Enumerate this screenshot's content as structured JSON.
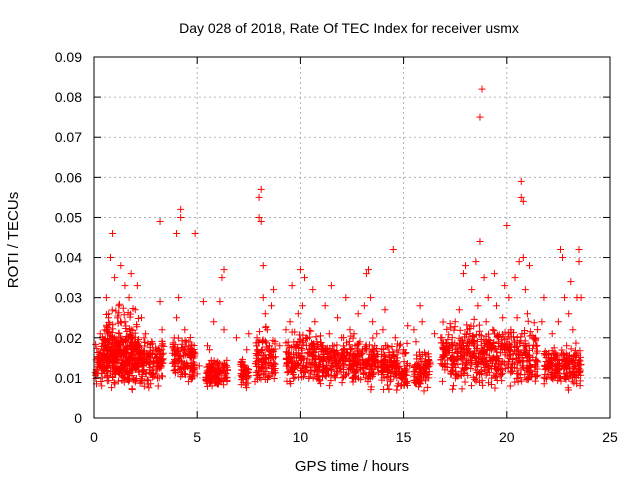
{
  "chart_data": {
    "type": "scatter",
    "title": "Day 028 of 2018, Rate Of TEC Index for receiver usmx",
    "xlabel": "GPS time / hours",
    "ylabel": "ROTI / TECUs",
    "xlim": [
      0,
      25
    ],
    "ylim": [
      0,
      0.09
    ],
    "x_ticks": [
      "0",
      "5",
      "10",
      "15",
      "20",
      "25"
    ],
    "y_ticks": [
      "0",
      "0.01",
      "0.02",
      "0.03",
      "0.04",
      "0.05",
      "0.06",
      "0.07",
      "0.08",
      "0.09"
    ],
    "grid": true,
    "marker": "+",
    "color": "#ff0000",
    "series": [
      {
        "points": [
          [
            0.1,
            0.012
          ],
          [
            0.2,
            0.015
          ],
          [
            0.3,
            0.021
          ],
          [
            0.4,
            0.01
          ],
          [
            0.5,
            0.018
          ],
          [
            0.6,
            0.03
          ],
          [
            0.6,
            0.013
          ],
          [
            0.7,
            0.025
          ],
          [
            0.8,
            0.017
          ],
          [
            0.8,
            0.04
          ],
          [
            0.9,
            0.011
          ],
          [
            0.9,
            0.046
          ],
          [
            1.0,
            0.02
          ],
          [
            1.0,
            0.035
          ],
          [
            1.1,
            0.014
          ],
          [
            1.2,
            0.028
          ],
          [
            1.3,
            0.016
          ],
          [
            1.3,
            0.038
          ],
          [
            1.4,
            0.012
          ],
          [
            1.5,
            0.024
          ],
          [
            1.5,
            0.033
          ],
          [
            1.6,
            0.019
          ],
          [
            1.7,
            0.03
          ],
          [
            1.7,
            0.011
          ],
          [
            1.8,
            0.022
          ],
          [
            1.8,
            0.036
          ],
          [
            1.9,
            0.015
          ],
          [
            2.0,
            0.027
          ],
          [
            2.0,
            0.009
          ],
          [
            2.1,
            0.033
          ],
          [
            2.2,
            0.018
          ],
          [
            2.3,
            0.025
          ],
          [
            2.4,
            0.013
          ],
          [
            2.5,
            0.021
          ],
          [
            2.6,
            0.016
          ],
          [
            2.7,
            0.012
          ],
          [
            2.8,
            0.019
          ],
          [
            2.9,
            0.014
          ],
          [
            3.0,
            0.011
          ],
          [
            3.1,
            0.017
          ],
          [
            3.2,
            0.049
          ],
          [
            3.2,
            0.029
          ],
          [
            3.3,
            0.022
          ],
          [
            4.0,
            0.025
          ],
          [
            4.0,
            0.046
          ],
          [
            4.1,
            0.03
          ],
          [
            4.2,
            0.05
          ],
          [
            4.2,
            0.052
          ],
          [
            4.3,
            0.017
          ],
          [
            4.4,
            0.022
          ],
          [
            4.5,
            0.013
          ],
          [
            4.6,
            0.019
          ],
          [
            4.8,
            0.012
          ],
          [
            4.9,
            0.016
          ],
          [
            4.9,
            0.046
          ],
          [
            5.0,
            0.011
          ],
          [
            5.1,
            0.013
          ],
          [
            5.3,
            0.029
          ],
          [
            5.5,
            0.018
          ],
          [
            5.6,
            0.017
          ],
          [
            5.8,
            0.024
          ],
          [
            6.0,
            0.014
          ],
          [
            6.1,
            0.029
          ],
          [
            6.2,
            0.035
          ],
          [
            6.3,
            0.037
          ],
          [
            6.3,
            0.022
          ],
          [
            6.4,
            0.011
          ],
          [
            6.9,
            0.02
          ],
          [
            7.2,
            0.014
          ],
          [
            7.4,
            0.017
          ],
          [
            7.5,
            0.021
          ],
          [
            7.9,
            0.02
          ],
          [
            8.0,
            0.055
          ],
          [
            8.0,
            0.05
          ],
          [
            8.1,
            0.057
          ],
          [
            8.1,
            0.049
          ],
          [
            8.2,
            0.038
          ],
          [
            8.2,
            0.03
          ],
          [
            8.3,
            0.026
          ],
          [
            8.4,
            0.022
          ],
          [
            8.5,
            0.018
          ],
          [
            8.6,
            0.028
          ],
          [
            8.7,
            0.032
          ],
          [
            9.0,
            0.018
          ],
          [
            9.3,
            0.022
          ],
          [
            9.5,
            0.024
          ],
          [
            9.6,
            0.033
          ],
          [
            9.7,
            0.015
          ],
          [
            9.9,
            0.026
          ],
          [
            10.0,
            0.037
          ],
          [
            10.1,
            0.028
          ],
          [
            10.2,
            0.035
          ],
          [
            10.3,
            0.02
          ],
          [
            10.4,
            0.016
          ],
          [
            10.6,
            0.032
          ],
          [
            10.7,
            0.024
          ],
          [
            10.8,
            0.019
          ],
          [
            11.0,
            0.012
          ],
          [
            11.1,
            0.018
          ],
          [
            11.2,
            0.028
          ],
          [
            11.4,
            0.021
          ],
          [
            11.5,
            0.033
          ],
          [
            11.6,
            0.016
          ],
          [
            11.8,
            0.025
          ],
          [
            12.0,
            0.02
          ],
          [
            12.2,
            0.03
          ],
          [
            12.4,
            0.022
          ],
          [
            12.5,
            0.014
          ],
          [
            12.6,
            0.021
          ],
          [
            12.8,
            0.026
          ],
          [
            13.0,
            0.017
          ],
          [
            13.1,
            0.028
          ],
          [
            13.2,
            0.036
          ],
          [
            13.3,
            0.037
          ],
          [
            13.4,
            0.03
          ],
          [
            13.5,
            0.024
          ],
          [
            13.6,
            0.018
          ],
          [
            13.7,
            0.021
          ],
          [
            13.9,
            0.013
          ],
          [
            14.0,
            0.022
          ],
          [
            14.1,
            0.027
          ],
          [
            14.2,
            0.018
          ],
          [
            14.3,
            0.012
          ],
          [
            14.5,
            0.042
          ],
          [
            14.6,
            0.02
          ],
          [
            14.7,
            0.015
          ],
          [
            14.8,
            0.018
          ],
          [
            15.0,
            0.017
          ],
          [
            15.2,
            0.023
          ],
          [
            15.3,
            0.013
          ],
          [
            15.5,
            0.022
          ],
          [
            15.6,
            0.019
          ],
          [
            15.8,
            0.028
          ],
          [
            15.9,
            0.024
          ],
          [
            16.0,
            0.014
          ],
          [
            16.2,
            0.016
          ],
          [
            16.5,
            0.021
          ],
          [
            16.8,
            0.02
          ],
          [
            17.0,
            0.012
          ],
          [
            17.3,
            0.018
          ],
          [
            17.5,
            0.024
          ],
          [
            17.6,
            0.015
          ],
          [
            17.7,
            0.027
          ],
          [
            17.9,
            0.036
          ],
          [
            18.0,
            0.038
          ],
          [
            18.1,
            0.022
          ],
          [
            18.2,
            0.019
          ],
          [
            18.3,
            0.032
          ],
          [
            18.4,
            0.016
          ],
          [
            18.5,
            0.039
          ],
          [
            18.6,
            0.028
          ],
          [
            18.7,
            0.044
          ],
          [
            18.7,
            0.075
          ],
          [
            18.8,
            0.082
          ],
          [
            18.9,
            0.035
          ],
          [
            19.0,
            0.024
          ],
          [
            19.1,
            0.03
          ],
          [
            19.3,
            0.018
          ],
          [
            19.4,
            0.036
          ],
          [
            19.5,
            0.028
          ],
          [
            19.6,
            0.02
          ],
          [
            19.8,
            0.025
          ],
          [
            19.9,
            0.033
          ],
          [
            20.0,
            0.048
          ],
          [
            20.1,
            0.03
          ],
          [
            20.2,
            0.022
          ],
          [
            20.3,
            0.016
          ],
          [
            20.4,
            0.035
          ],
          [
            20.5,
            0.025
          ],
          [
            20.6,
            0.039
          ],
          [
            20.7,
            0.055
          ],
          [
            20.7,
            0.059
          ],
          [
            20.8,
            0.054
          ],
          [
            20.8,
            0.04
          ],
          [
            20.9,
            0.032
          ],
          [
            21.0,
            0.026
          ],
          [
            21.1,
            0.038
          ],
          [
            21.3,
            0.02
          ],
          [
            21.5,
            0.014
          ],
          [
            21.7,
            0.024
          ],
          [
            21.8,
            0.03
          ],
          [
            22.0,
            0.014
          ],
          [
            22.2,
            0.021
          ],
          [
            22.3,
            0.016
          ],
          [
            22.5,
            0.024
          ],
          [
            22.6,
            0.042
          ],
          [
            22.7,
            0.04
          ],
          [
            22.8,
            0.03
          ],
          [
            22.9,
            0.018
          ],
          [
            23.0,
            0.026
          ],
          [
            23.1,
            0.034
          ],
          [
            23.2,
            0.022
          ],
          [
            23.4,
            0.03
          ],
          [
            23.5,
            0.042
          ],
          [
            23.5,
            0.039
          ],
          [
            23.6,
            0.03
          ]
        ]
      }
    ],
    "dense_bands": [
      {
        "x": [
          0.05,
          3.4
        ],
        "y": [
          0.006,
          0.022
        ]
      },
      {
        "x": [
          0.4,
          2.2
        ],
        "y": [
          0.006,
          0.03
        ]
      },
      {
        "x": [
          3.8,
          4.9
        ],
        "y": [
          0.006,
          0.022
        ]
      },
      {
        "x": [
          5.4,
          6.5
        ],
        "y": [
          0.006,
          0.016
        ]
      },
      {
        "x": [
          7.1,
          7.5
        ],
        "y": [
          0.006,
          0.016
        ]
      },
      {
        "x": [
          7.8,
          8.8
        ],
        "y": [
          0.005,
          0.024
        ]
      },
      {
        "x": [
          9.3,
          11.2
        ],
        "y": [
          0.006,
          0.024
        ]
      },
      {
        "x": [
          11.2,
          13.8
        ],
        "y": [
          0.006,
          0.022
        ]
      },
      {
        "x": [
          13.9,
          15.2
        ],
        "y": [
          0.005,
          0.02
        ]
      },
      {
        "x": [
          15.5,
          16.3
        ],
        "y": [
          0.006,
          0.018
        ]
      },
      {
        "x": [
          16.8,
          21.5
        ],
        "y": [
          0.005,
          0.026
        ]
      },
      {
        "x": [
          21.8,
          23.6
        ],
        "y": [
          0.006,
          0.02
        ]
      }
    ]
  }
}
